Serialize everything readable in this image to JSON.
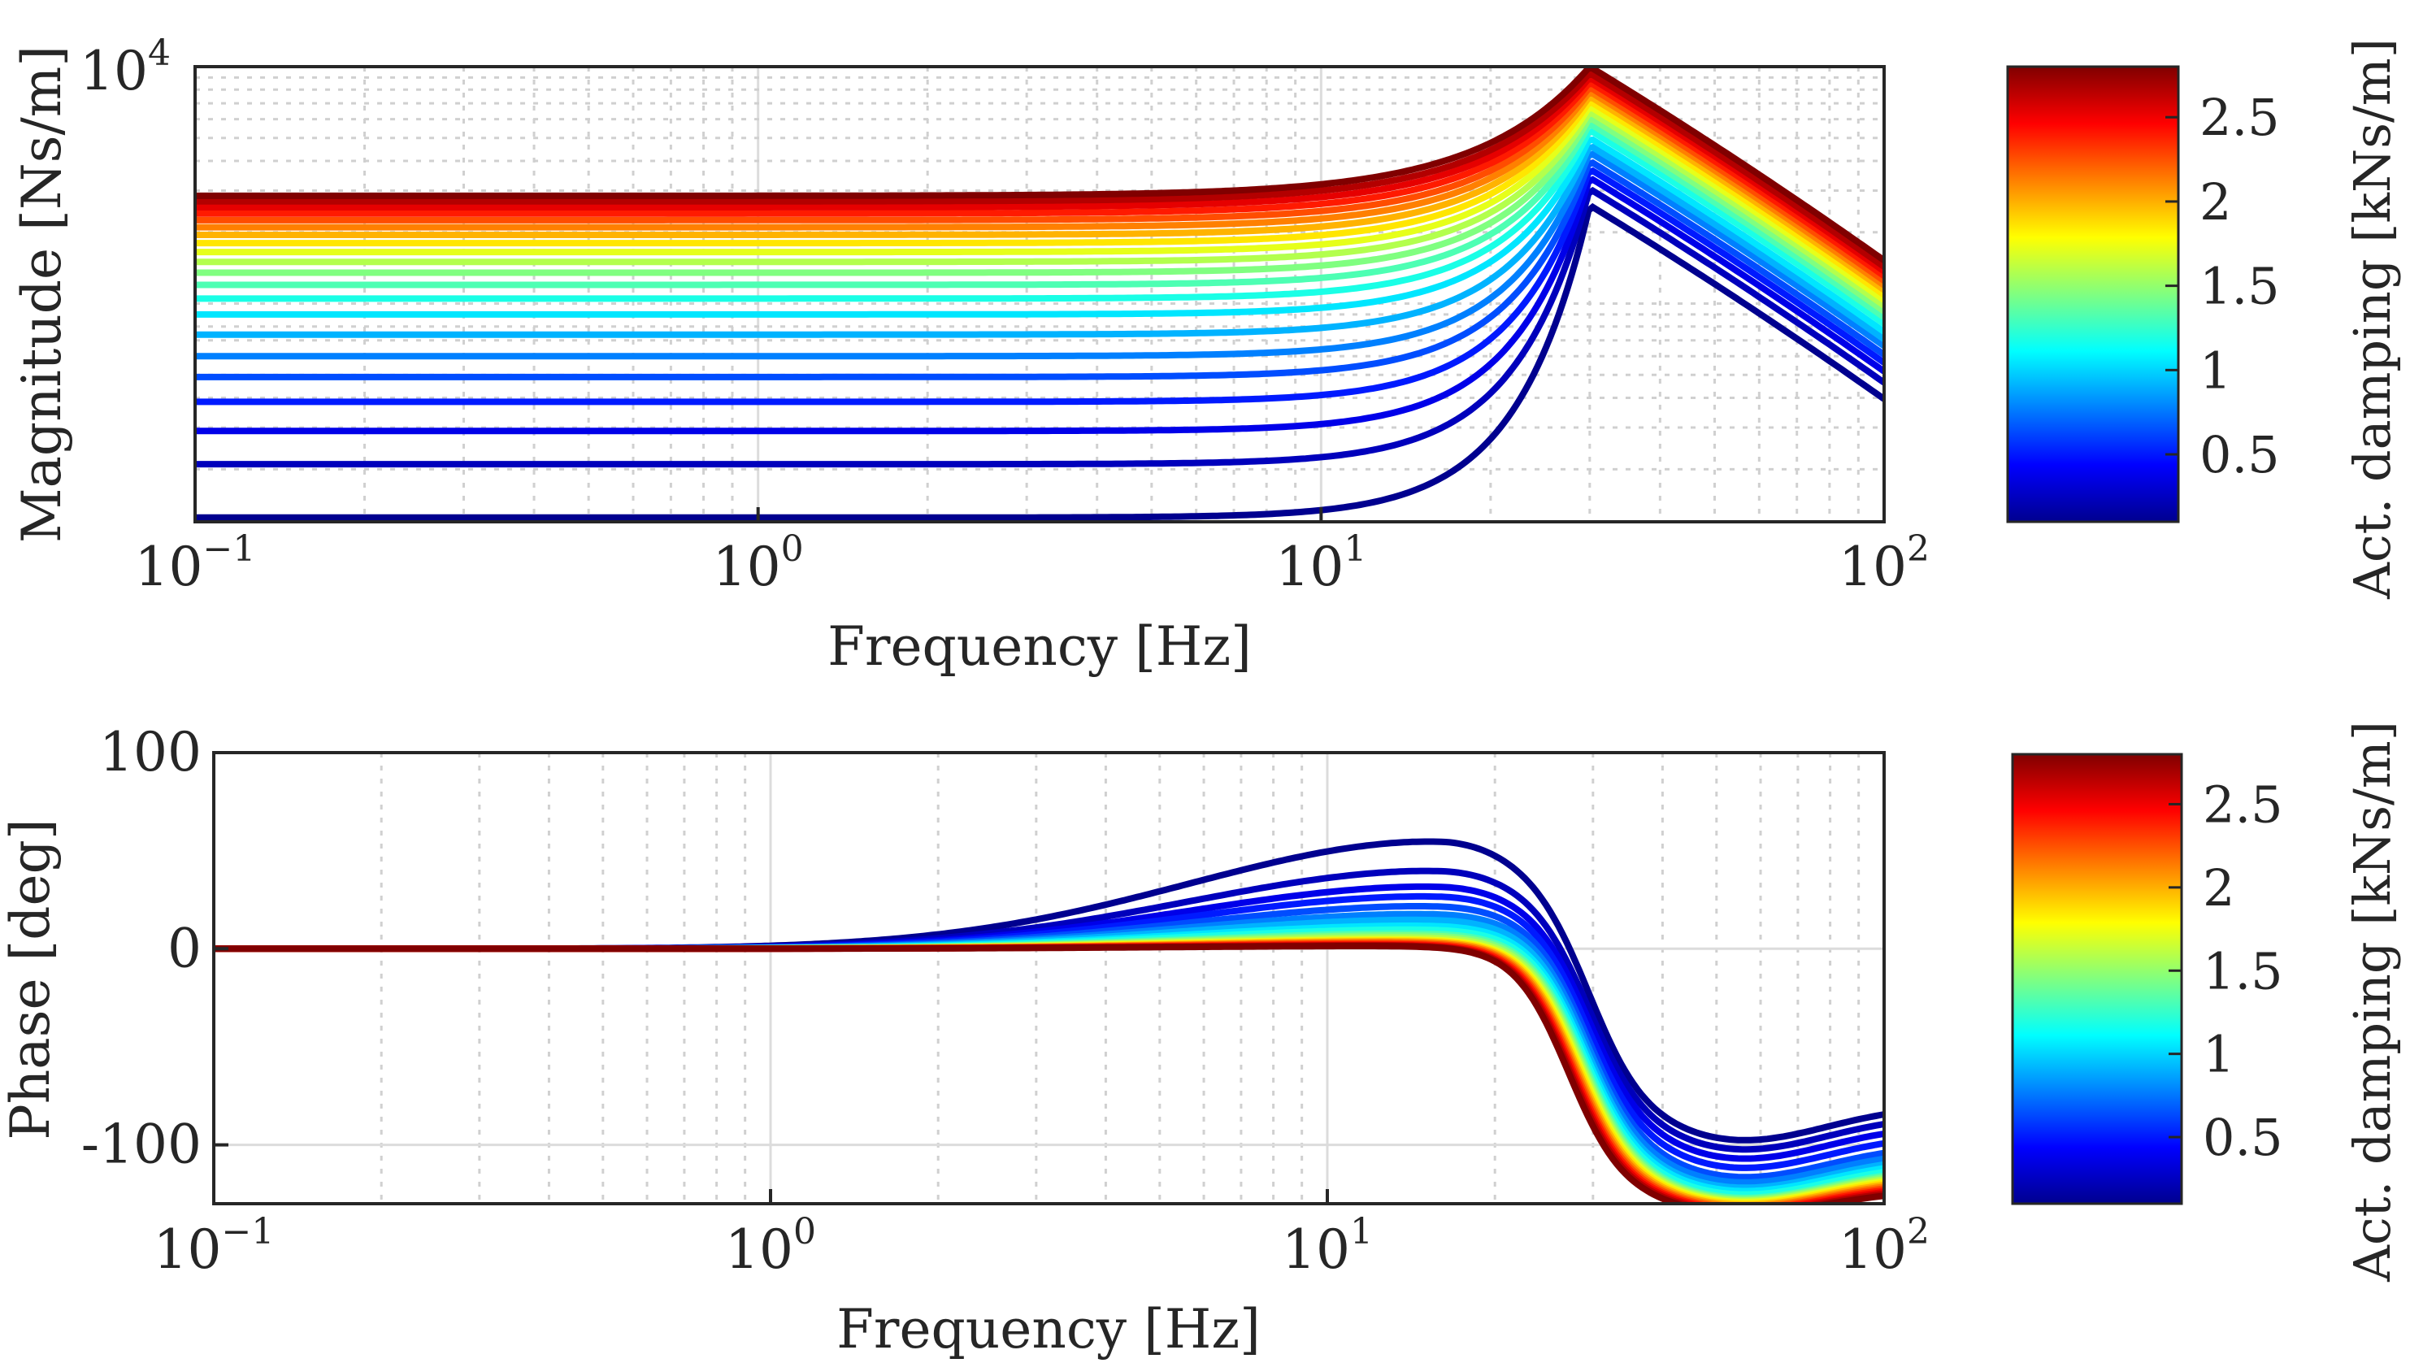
{
  "chart_data": [
    {
      "type": "line",
      "panel": "magnitude",
      "xlabel": "Frequency [Hz]",
      "ylabel": "Magnitude [Ns/m]",
      "xscale": "log",
      "yscale": "log",
      "xlim": [
        0.1,
        100
      ],
      "ylim": [
        120,
        10000
      ],
      "x_ticks": [
        {
          "base": "10",
          "exp": "−1"
        },
        {
          "base": "10",
          "exp": "0"
        },
        {
          "base": "10",
          "exp": "1"
        },
        {
          "base": "10",
          "exp": "2"
        }
      ],
      "y_ticks": [
        {
          "base": "10",
          "exp": "4"
        }
      ],
      "grid": true,
      "resonance_hz": 30,
      "series_count": 21,
      "low_freq_levels": [
        125,
        210,
        290,
        385,
        490,
        600,
        740,
        900,
        1050,
        1200,
        1350,
        1500,
        1650,
        1800,
        1950,
        2100,
        2250,
        2400,
        2550,
        2700,
        2850
      ],
      "peak_levels": [
        2600,
        3050,
        3400,
        3700,
        4000,
        4350,
        4650,
        5000,
        5400,
        5750,
        6100,
        6450,
        6800,
        7150,
        7500,
        7850,
        8200,
        8600,
        9000,
        9400,
        10000
      ],
      "legend": "colorbar right"
    },
    {
      "type": "line",
      "panel": "phase",
      "xlabel": "Frequency [Hz]",
      "ylabel": "Phase [deg]",
      "xscale": "log",
      "xlim": [
        0.1,
        100
      ],
      "ylim": [
        -130,
        100
      ],
      "x_ticks": [
        {
          "base": "10",
          "exp": "−1"
        },
        {
          "base": "10",
          "exp": "0"
        },
        {
          "base": "10",
          "exp": "1"
        },
        {
          "base": "10",
          "exp": "2"
        }
      ],
      "y_ticks": [
        "100",
        "0",
        "-100"
      ],
      "y_tick_values": [
        100,
        0,
        -100
      ],
      "grid": true,
      "series_count": 21,
      "max_phase_lead_deg": [
        55,
        40,
        32,
        27,
        22,
        18,
        15,
        12,
        10,
        8,
        7,
        6,
        5,
        4.5,
        4,
        3.5,
        3,
        2.5,
        2,
        1.8,
        1.5
      ],
      "settling_phase_at_100hz_deg": [
        -80,
        -85,
        -90,
        -95,
        -100,
        -103,
        -106,
        -108,
        -110,
        -112,
        -113,
        -114,
        -115,
        -116,
        -117,
        -118,
        -119,
        -120,
        -121,
        -122,
        -123
      ],
      "legend": "colorbar right"
    }
  ],
  "colorbars": [
    {
      "label": "Act. damping [kNs/m]",
      "ticks": [
        "0.5",
        "1",
        "1.5",
        "2",
        "2.5"
      ],
      "tick_values": [
        0.5,
        1,
        1.5,
        2,
        2.5
      ],
      "range": [
        0.1,
        2.8
      ]
    },
    {
      "label": "Act. damping [kNs/m]",
      "ticks": [
        "0.5",
        "1",
        "1.5",
        "2",
        "2.5"
      ],
      "tick_values": [
        0.5,
        1,
        1.5,
        2,
        2.5
      ],
      "range": [
        0.1,
        2.8
      ]
    }
  ],
  "colormap": [
    "#00008f",
    "#0000ff",
    "#0080ff",
    "#00ffff",
    "#80ff80",
    "#ffff00",
    "#ff8000",
    "#ff0000",
    "#800000"
  ]
}
